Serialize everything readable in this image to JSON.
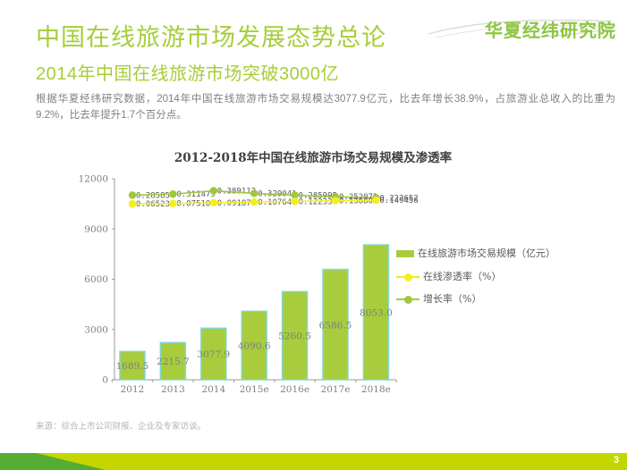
{
  "header": {
    "logo": "华夏经纬研究院",
    "title": "中国在线旅游市场发展态势总论",
    "subtitle": "2014年中国在线旅游市场突破3000亿",
    "paragraph": "根据华夏经纬研究数据，2014年中国在线旅游市场交易规模达3077.9亿元，比去年增长38.9%，占旅游业总收入的比重为9.2%，比去年提升1.7个百分点。"
  },
  "chart_data": {
    "type": "bar",
    "title": "2012-2018年中国在线旅游市场交易规模及渗透率",
    "categories": [
      "2012",
      "2013",
      "2014",
      "2015e",
      "2016e",
      "2017e",
      "2018e"
    ],
    "series": [
      {
        "name": "在线旅游市场交易规模（亿元）",
        "type": "bar",
        "values": [
          1689.5,
          2215.7,
          3077.9,
          4090.6,
          5260.5,
          6586.5,
          8053.0
        ],
        "labels": [
          "1689.5",
          "2215.7",
          "3077.9",
          "4090.6",
          "5260.5",
          "6586.5",
          "8053.0"
        ],
        "color": "#a8cc3c",
        "border_color": "#7fd8d4"
      },
      {
        "name": "在线渗透率（%）",
        "type": "line",
        "values": [
          0.065231,
          0.075109,
          0.091877,
          0.107648,
          0.122337,
          0.136805,
          0.149456
        ],
        "labels": [
          "0.065231",
          "0.075109",
          "0.091877",
          "0.107648",
          "0.122337",
          "0.136805",
          "0.149456"
        ],
        "color": "#f5ee1e"
      },
      {
        "name": "增长率（%）",
        "type": "line",
        "values": [
          0.28585,
          0.311479,
          0.389112,
          0.329041,
          0.285995,
          0.252072,
          0.222652
        ],
        "labels": [
          "0.28585",
          "0.311479",
          "0.389112",
          "0.329041",
          "0.285995",
          "0.252072",
          "0.222652"
        ],
        "color": "#a0c73a"
      }
    ],
    "y_axis": {
      "ticks": [
        0,
        3000,
        6000,
        9000,
        12000
      ],
      "min": 0,
      "max": 12000
    },
    "xlabel": "",
    "ylabel": "",
    "grid": false,
    "legend_position": "right"
  },
  "footer": {
    "source": "来源：综合上市公司财报、企业及专家访谈。",
    "page": "3"
  },
  "colors": {
    "accent_green": "#a6ce39",
    "logo_green": "#8dc63f",
    "bar_fill": "#a8cc3c",
    "bar_border": "#7fd8d4",
    "line_yellow": "#f5ee1e",
    "line_green": "#a0c73a",
    "text_gray": "#808080",
    "footer_bar": "#c3d600",
    "footer_accent": "#55ad33"
  }
}
